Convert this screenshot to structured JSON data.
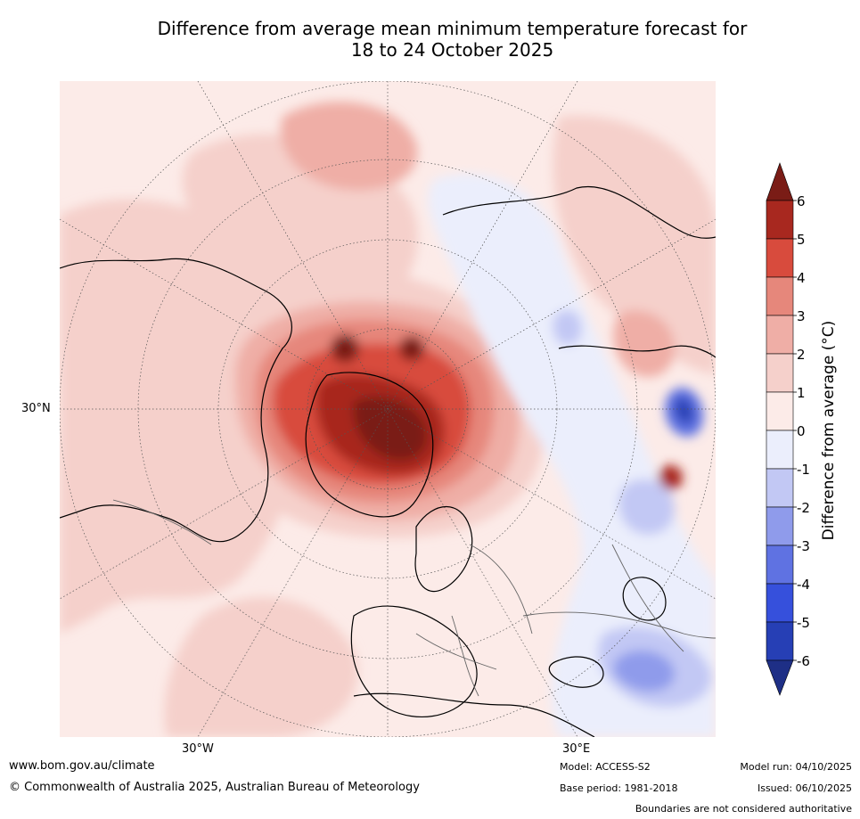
{
  "title_line1": "Difference from average mean minimum temperature forecast for",
  "title_line2": "18 to 24 October 2025",
  "map": {
    "lat_label": "30°N",
    "lon_labels": [
      "30°W",
      "30°E"
    ]
  },
  "legend": {
    "title": "Difference from average (°C)",
    "ticks": [
      "6",
      "5",
      "4",
      "3",
      "2",
      "1",
      "0",
      "-1",
      "-2",
      "-3",
      "-4",
      "-5",
      "-6"
    ],
    "warm_colors": [
      "#7a1c16",
      "#a8281f",
      "#d84b3d",
      "#e6877b",
      "#efaea6",
      "#f5d0cb",
      "#fcebe8"
    ],
    "cool_colors": [
      "#ebeefc",
      "#c2c8f4",
      "#8f9beb",
      "#5f72e2",
      "#3650dc",
      "#263fb5",
      "#1e2f86"
    ]
  },
  "footer": {
    "website": "www.bom.gov.au/climate",
    "copyright": "© Commonwealth of Australia 2025, Australian Bureau of Meteorology",
    "model": "Model: ACCESS-S2",
    "base_period": "Base period: 1981-2018",
    "model_run": "Model run: 04/10/2025",
    "issued": "Issued: 06/10/2025",
    "boundaries": "Boundaries are not considered authoritative"
  }
}
